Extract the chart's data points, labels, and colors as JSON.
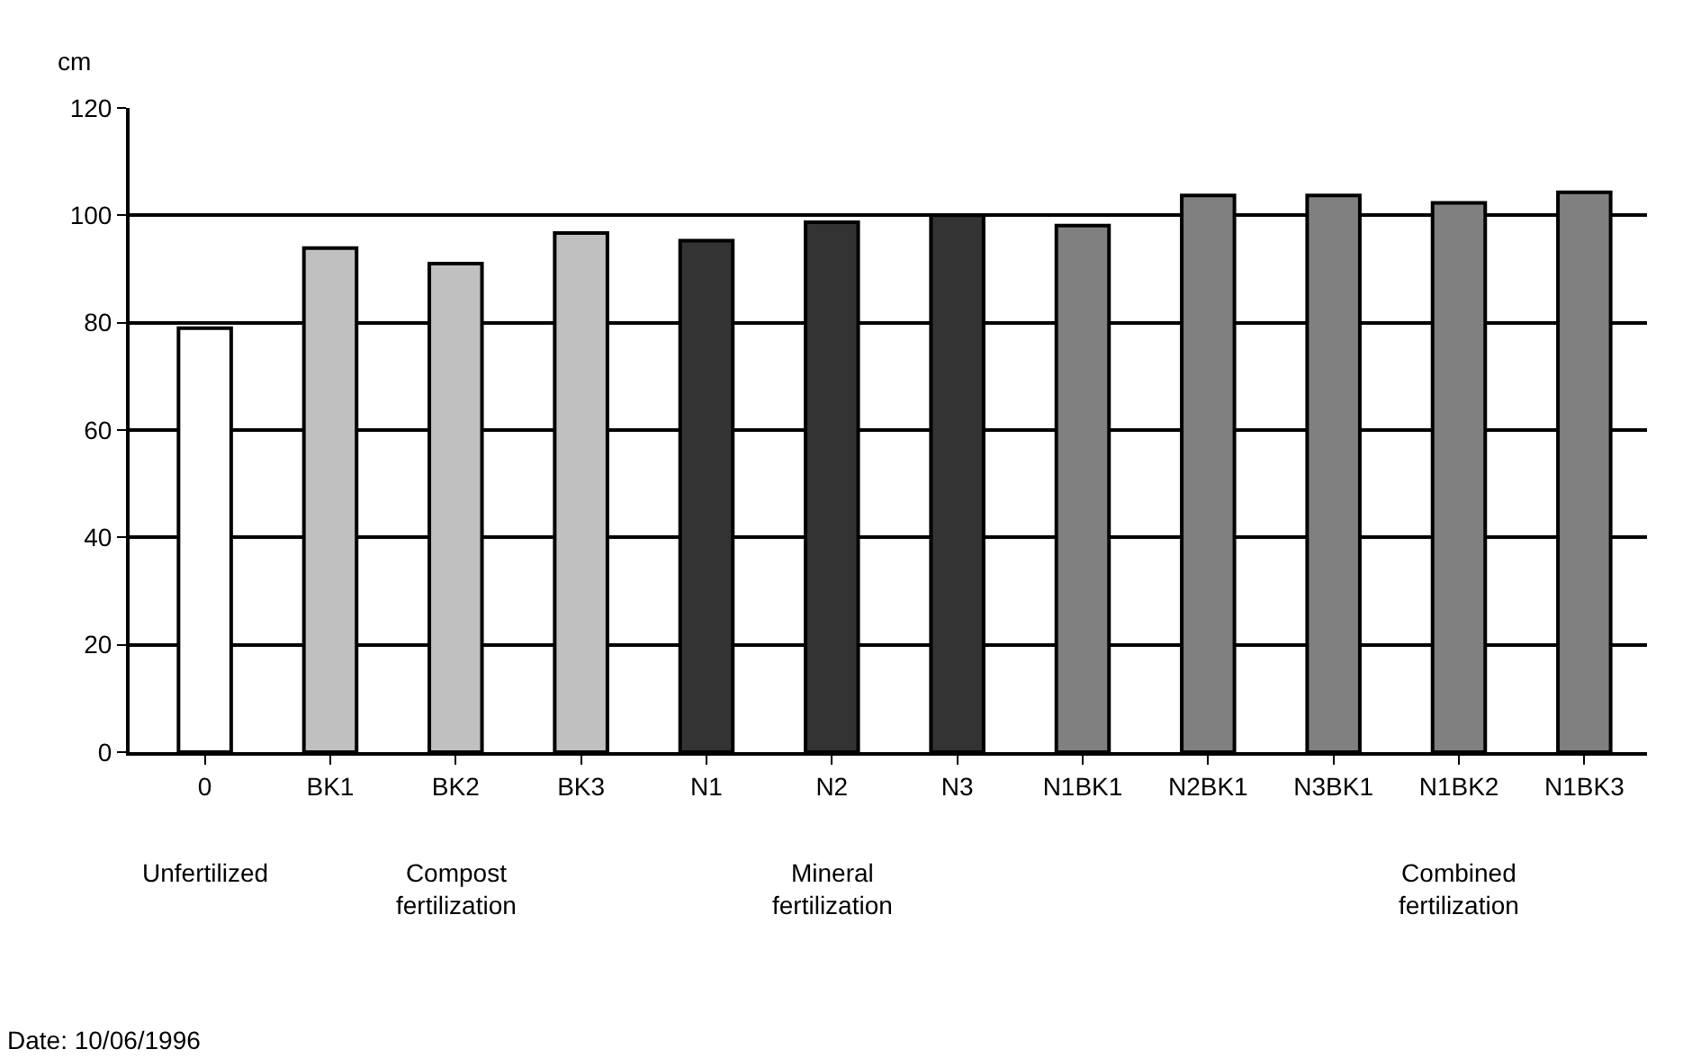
{
  "chart_data": {
    "type": "bar",
    "ylabel": "cm",
    "categories": [
      "0",
      "BK1",
      "BK2",
      "BK3",
      "N1",
      "N2",
      "N3",
      "N1BK1",
      "N2BK1",
      "N3BK1",
      "N1BK2",
      "N1BK3"
    ],
    "values": [
      79.0,
      93.9,
      91.0,
      96.7,
      95.3,
      98.7,
      100.0,
      98.1,
      103.7,
      103.7,
      102.3,
      104.3
    ],
    "colors": [
      "#ffffff",
      "#c0c0c0",
      "#c0c0c0",
      "#c0c0c0",
      "#333333",
      "#333333",
      "#333333",
      "#808080",
      "#808080",
      "#808080",
      "#808080",
      "#808080"
    ],
    "ylim": [
      0,
      120
    ],
    "yticks": [
      0,
      20,
      40,
      60,
      80,
      100,
      120
    ],
    "grid": "y",
    "annotations": [
      "Unfertilized",
      "Compost\nfertilization",
      "Mineral\nfertilization",
      "Combined\nfertilization",
      "Date: 10/06/1996"
    ]
  }
}
